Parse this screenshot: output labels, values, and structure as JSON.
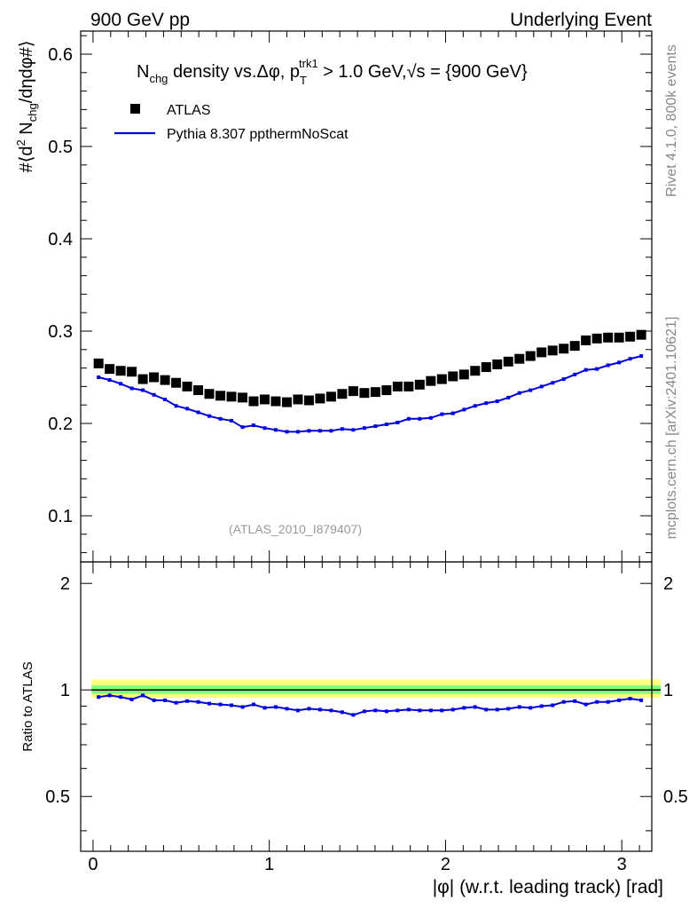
{
  "header": {
    "left": "900 GeV pp",
    "right": "Underlying Event"
  },
  "side_labels": {
    "rivet": "Rivet 4.1.0,  800k events",
    "mcplots": "mcplots.cern.ch [arXiv:2401.10621]"
  },
  "colors": {
    "data": "#000000",
    "mc": "#0000dd",
    "band_outer": "#ffff80",
    "band_inner": "#80ff80"
  },
  "chart_data": [
    {
      "type": "scatter",
      "panel": "main",
      "title": {
        "n": "N",
        "n_sub": "chg",
        "mid": " density vs.",
        "dphi": "Δφ",
        "comma": ",",
        "p": " p",
        "p_sub": "T",
        "p_sup": "trk1",
        "cut": " > 1.0 GeV,",
        "sqrt": "√s",
        "energy": " = {900 GeV}"
      },
      "ylabel": {
        "a": "#⟨d",
        "a_sup": "2",
        "b": " N",
        "b_sub": "chg",
        "c": "/dηdφ#⟩"
      },
      "ylim": [
        0.05,
        0.625
      ],
      "xlim": [
        -0.07,
        3.17
      ],
      "yticks": [
        0.1,
        0.2,
        0.3,
        0.4,
        0.5,
        0.6
      ],
      "ytick_labels": [
        "0.1",
        "0.2",
        "0.3",
        "0.4",
        "0.5",
        "0.6"
      ],
      "watermark": "(ATLAS_2010_I879407)",
      "legend": {
        "data_label": "ATLAS",
        "mc_label": "Pythia 8.307 ppthermNoScat",
        "position": "top-left"
      },
      "x": [
        0.0314,
        0.0942,
        0.1571,
        0.2199,
        0.2827,
        0.3456,
        0.4084,
        0.4712,
        0.5341,
        0.5969,
        0.6597,
        0.7226,
        0.7854,
        0.8482,
        0.911,
        0.9739,
        1.0367,
        1.0996,
        1.1624,
        1.2252,
        1.2881,
        1.3509,
        1.4137,
        1.4765,
        1.5394,
        1.6022,
        1.665,
        1.7279,
        1.7907,
        1.8535,
        1.9164,
        1.9792,
        2.042,
        2.1049,
        2.1677,
        2.2305,
        2.2934,
        2.3562,
        2.419,
        2.4819,
        2.5447,
        2.6075,
        2.6704,
        2.7332,
        2.796,
        2.8588,
        2.9217,
        2.9845,
        3.0473,
        3.1102
      ],
      "series": [
        {
          "name": "ATLAS",
          "values": [
            0.265,
            0.259,
            0.257,
            0.256,
            0.248,
            0.25,
            0.247,
            0.244,
            0.24,
            0.236,
            0.232,
            0.23,
            0.229,
            0.228,
            0.224,
            0.226,
            0.224,
            0.223,
            0.226,
            0.225,
            0.227,
            0.229,
            0.232,
            0.235,
            0.233,
            0.234,
            0.236,
            0.24,
            0.24,
            0.242,
            0.246,
            0.248,
            0.251,
            0.253,
            0.257,
            0.261,
            0.264,
            0.267,
            0.27,
            0.273,
            0.277,
            0.279,
            0.281,
            0.284,
            0.29,
            0.292,
            0.293,
            0.293,
            0.294,
            0.296
          ]
        },
        {
          "name": "Pythia 8.307 ppthermNoScat",
          "values": [
            0.25,
            0.247,
            0.243,
            0.238,
            0.236,
            0.231,
            0.226,
            0.219,
            0.216,
            0.212,
            0.208,
            0.205,
            0.203,
            0.196,
            0.198,
            0.195,
            0.193,
            0.191,
            0.191,
            0.192,
            0.192,
            0.192,
            0.194,
            0.193,
            0.195,
            0.197,
            0.199,
            0.201,
            0.205,
            0.205,
            0.206,
            0.21,
            0.211,
            0.215,
            0.219,
            0.222,
            0.224,
            0.228,
            0.233,
            0.236,
            0.24,
            0.244,
            0.248,
            0.253,
            0.258,
            0.259,
            0.263,
            0.266,
            0.27,
            0.273
          ]
        }
      ]
    },
    {
      "type": "line",
      "panel": "ratio",
      "ylabel": "Ratio to ATLAS",
      "xlabel": "|φ| (w.r.t. leading track) [rad]",
      "ylim": [
        0.35,
        2.3
      ],
      "xlim": [
        -0.07,
        3.17
      ],
      "yticks": [
        0.5,
        1,
        2
      ],
      "ytick_labels": [
        "0.5",
        "1",
        "2"
      ],
      "xticks": [
        0,
        1,
        2,
        3
      ],
      "xtick_labels": [
        "0",
        "1",
        "2",
        "3"
      ],
      "band_outer": [
        0.95,
        1.07
      ],
      "band_inner": [
        0.975,
        1.03
      ],
      "reference": 1.0,
      "series": [
        {
          "name": "Pythia 8.307 ppthermNoScat / ATLAS",
          "values": [
            0.955,
            0.965,
            0.955,
            0.94,
            0.965,
            0.935,
            0.935,
            0.92,
            0.93,
            0.925,
            0.915,
            0.91,
            0.905,
            0.895,
            0.91,
            0.89,
            0.895,
            0.885,
            0.875,
            0.885,
            0.88,
            0.875,
            0.865,
            0.85,
            0.87,
            0.875,
            0.87,
            0.875,
            0.88,
            0.875,
            0.875,
            0.875,
            0.88,
            0.89,
            0.895,
            0.88,
            0.88,
            0.885,
            0.895,
            0.89,
            0.9,
            0.905,
            0.925,
            0.93,
            0.91,
            0.925,
            0.925,
            0.935,
            0.945,
            0.935
          ]
        }
      ]
    }
  ]
}
